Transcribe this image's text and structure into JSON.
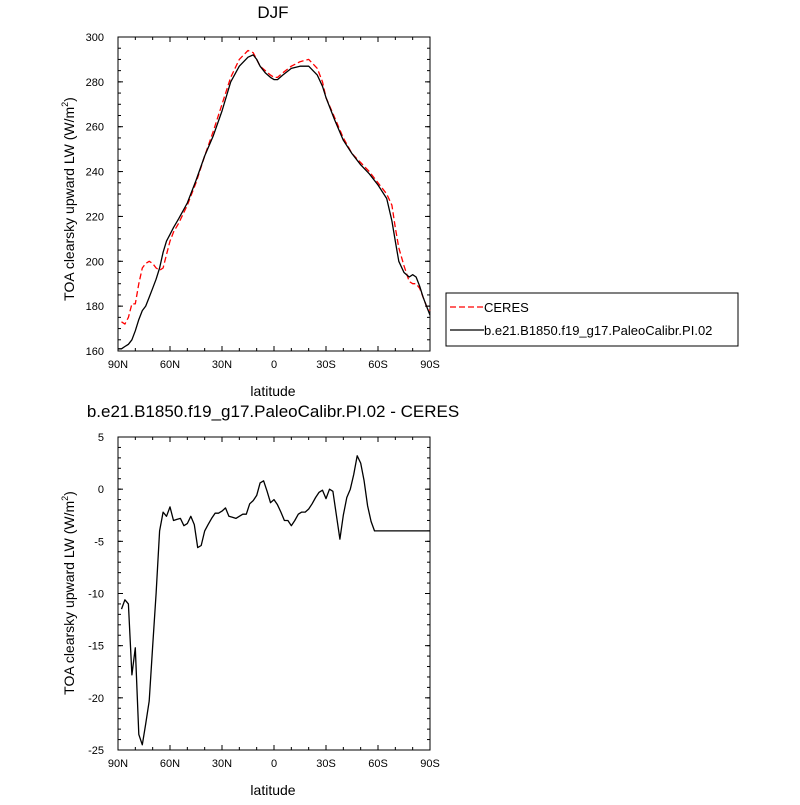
{
  "chart_data": [
    {
      "type": "line",
      "title": "DJF",
      "xlabel": "latitude",
      "ylabel": "TOA clearsky upward LW (W/m",
      "ylabel_sup": "2",
      "ylabel_end": ")",
      "xlim": [
        90,
        -90
      ],
      "ylim": [
        160,
        300
      ],
      "x_ticks": [
        {
          "value": 90,
          "label": "90N"
        },
        {
          "value": 60,
          "label": "60N"
        },
        {
          "value": 30,
          "label": "30N"
        },
        {
          "value": 0,
          "label": "0"
        },
        {
          "value": -30,
          "label": "30S"
        },
        {
          "value": -60,
          "label": "60S"
        },
        {
          "value": -90,
          "label": "90S"
        }
      ],
      "y_ticks": [
        160,
        180,
        200,
        220,
        240,
        260,
        280,
        300
      ],
      "legend": {
        "placement": "right"
      },
      "series": [
        {
          "name": "CERES",
          "color": "#ff0000",
          "dash": "dashed",
          "x": [
            88,
            86,
            84,
            82,
            80,
            78,
            76,
            74,
            72,
            70,
            68,
            66,
            64,
            62,
            60,
            58,
            55,
            50,
            45,
            40,
            35,
            30,
            25,
            20,
            15,
            12,
            10,
            8,
            5,
            2,
            0,
            -2,
            -5,
            -10,
            -15,
            -20,
            -25,
            -28,
            -30,
            -35,
            -40,
            -45,
            -50,
            -55,
            -60,
            -65,
            -68,
            -70,
            -72,
            -75,
            -78,
            -80,
            -82,
            -84,
            -86,
            -88,
            -90
          ],
          "y": [
            173,
            172,
            175,
            181,
            181,
            190,
            197,
            199,
            200,
            199,
            197,
            196,
            197,
            203,
            209,
            213,
            217,
            225,
            235,
            247,
            258,
            270,
            282,
            290,
            294,
            293,
            290,
            287,
            285,
            283,
            282,
            282,
            284,
            287,
            289,
            290,
            286,
            280,
            273,
            264,
            255,
            248,
            244,
            240,
            235,
            230,
            225,
            215,
            206,
            198,
            191,
            190,
            190,
            188,
            184,
            180,
            178
          ]
        },
        {
          "name": "b.e21.B1850.f19_g17.PaleoCalibr.PI.02",
          "color": "#000000",
          "dash": "solid",
          "x": [
            90,
            88,
            86,
            84,
            82,
            80,
            78,
            76,
            74,
            72,
            70,
            68,
            66,
            64,
            62,
            60,
            58,
            55,
            50,
            45,
            40,
            35,
            30,
            25,
            20,
            15,
            12,
            10,
            8,
            5,
            2,
            0,
            -2,
            -5,
            -10,
            -15,
            -20,
            -25,
            -28,
            -30,
            -35,
            -40,
            -45,
            -50,
            -55,
            -60,
            -65,
            -68,
            -70,
            -72,
            -75,
            -78,
            -80,
            -82,
            -84,
            -86,
            -88,
            -90
          ],
          "y": [
            161,
            161,
            162,
            163,
            165,
            169,
            174,
            178,
            180,
            184,
            188,
            192,
            197,
            204,
            209,
            212,
            215,
            219,
            226,
            236,
            247,
            256,
            267,
            280,
            287,
            291,
            292,
            290,
            287,
            284,
            282,
            281,
            281,
            283,
            286,
            287,
            287,
            283,
            278,
            273,
            263,
            254,
            248,
            243,
            239,
            234,
            228,
            218,
            209,
            200,
            195,
            193,
            194,
            193,
            189,
            184,
            180,
            176
          ]
        }
      ]
    },
    {
      "type": "line",
      "title": "b.e21.B1850.f19_g17.PaleoCalibr.PI.02 - CERES",
      "xlabel": "latitude",
      "ylabel": "TOA clearsky upward LW (W/m",
      "ylabel_sup": "2",
      "ylabel_end": ")",
      "xlim": [
        90,
        -90
      ],
      "ylim": [
        -25,
        5
      ],
      "x_ticks": [
        {
          "value": 90,
          "label": "90N"
        },
        {
          "value": 60,
          "label": "60N"
        },
        {
          "value": 30,
          "label": "30N"
        },
        {
          "value": 0,
          "label": "0"
        },
        {
          "value": -30,
          "label": "30S"
        },
        {
          "value": -60,
          "label": "60S"
        },
        {
          "value": -90,
          "label": "90S"
        }
      ],
      "y_ticks": [
        5,
        0,
        -5,
        -10,
        -15,
        -20,
        -25
      ],
      "series": [
        {
          "color": "#000000",
          "dash": "solid",
          "x": [
            88,
            86,
            84,
            82,
            80,
            78,
            76,
            74,
            72,
            70,
            68,
            66,
            64,
            62,
            60,
            58,
            56,
            54,
            52,
            50,
            48,
            46,
            44,
            42,
            40,
            38,
            36,
            34,
            32,
            30,
            28,
            26,
            24,
            22,
            20,
            18,
            16,
            14,
            12,
            10,
            8,
            6,
            4,
            2,
            0,
            -2,
            -4,
            -6,
            -8,
            -10,
            -12,
            -14,
            -16,
            -18,
            -20,
            -22,
            -24,
            -26,
            -28,
            -30,
            -32,
            -34,
            -36,
            -38,
            -40,
            -42,
            -44,
            -46,
            -48,
            -50,
            -52,
            -54,
            -56,
            -58,
            -60,
            -62,
            -64,
            -66,
            -68,
            -70,
            -72,
            -74,
            -76,
            -78,
            -80,
            -82,
            -84,
            -86,
            -88,
            -90
          ],
          "y": [
            -11.5,
            -10.6,
            -11.0,
            -17.8,
            -15.2,
            -23.5,
            -24.5,
            -22.5,
            -20.3,
            -15.0,
            -10.0,
            -4.0,
            -2.2,
            -2.6,
            -1.7,
            -3.0,
            -2.9,
            -2.8,
            -3.5,
            -3.3,
            -2.6,
            -3.4,
            -5.6,
            -5.4,
            -4.0,
            -3.4,
            -2.8,
            -2.3,
            -2.3,
            -2.1,
            -1.8,
            -2.6,
            -2.7,
            -2.8,
            -2.6,
            -2.4,
            -2.4,
            -1.4,
            -1.1,
            -0.6,
            0.6,
            0.8,
            -0.2,
            -1.3,
            -1.0,
            -1.5,
            -2.2,
            -3.0,
            -3.0,
            -3.5,
            -3.0,
            -2.4,
            -2.2,
            -2.2,
            -1.9,
            -1.4,
            -0.8,
            -0.3,
            -0.1,
            -0.9,
            0.0,
            -0.2,
            -2.5,
            -4.8,
            -2.5,
            -0.8,
            0.0,
            1.4,
            3.2,
            2.5,
            0.8,
            -1.6,
            -3.1,
            -4.0,
            -4.0,
            -4.0,
            -4.0,
            -4.0,
            -4.0,
            -4.0,
            -4.0,
            -4.0,
            -4.0,
            -4.0,
            -4.0,
            -4.0,
            -4.0,
            -4.0,
            -4.0,
            -4.0
          ]
        }
      ]
    }
  ]
}
